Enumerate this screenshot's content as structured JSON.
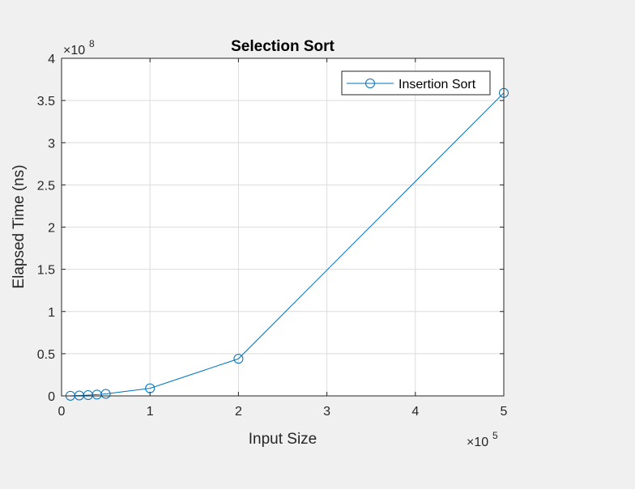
{
  "chart_data": {
    "type": "line",
    "title": "Selection Sort",
    "xlabel": "Input Size",
    "ylabel": "Elapsed Time (ns)",
    "x_exponent_label": "×10",
    "x_exponent": "5",
    "y_exponent_label": "×10",
    "y_exponent": "8",
    "xlim": [
      0,
      500000
    ],
    "ylim": [
      0,
      400000000
    ],
    "x_ticks": [
      0,
      100000,
      200000,
      300000,
      400000,
      500000
    ],
    "x_tick_labels": [
      "0",
      "1",
      "2",
      "3",
      "4",
      "5"
    ],
    "y_ticks": [
      0,
      50000000,
      100000000,
      150000000,
      200000000,
      250000000,
      300000000,
      350000000,
      400000000
    ],
    "y_tick_labels": [
      "0",
      "0.5",
      "1",
      "1.5",
      "2",
      "2.5",
      "3",
      "3.5",
      "4"
    ],
    "grid": true,
    "legend_position": "top-right",
    "series": [
      {
        "name": "Insertion Sort",
        "color": "#0072bd",
        "marker": "circle",
        "x": [
          10000,
          20000,
          30000,
          40000,
          50000,
          100000,
          200000,
          500000
        ],
        "y": [
          150000,
          500000,
          900000,
          1500000,
          2400000,
          9000000,
          44000000,
          359000000
        ]
      }
    ]
  }
}
